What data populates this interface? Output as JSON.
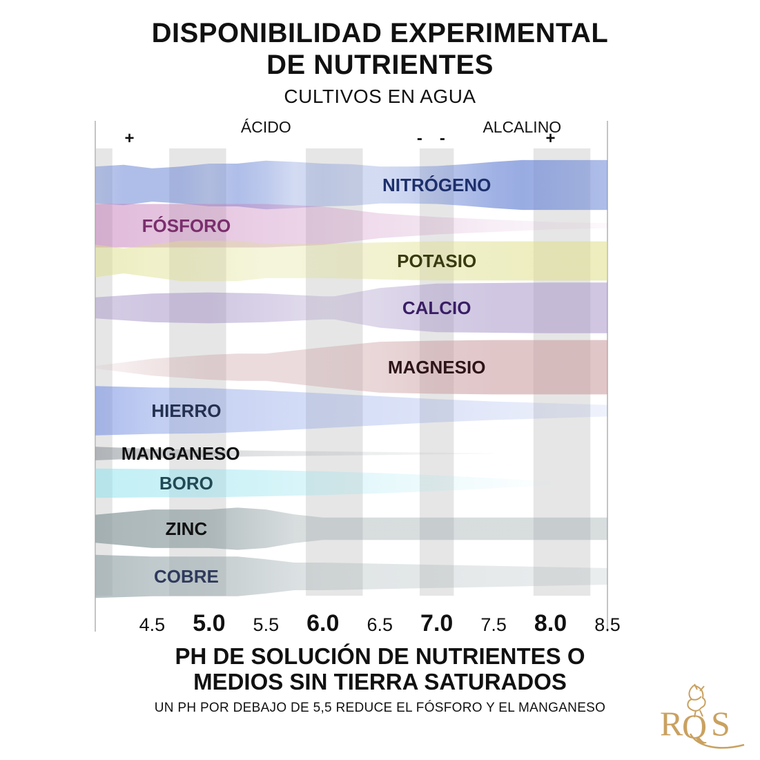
{
  "header": {
    "title_line1": "DISPONIBILIDAD EXPERIMENTAL",
    "title_line2": "DE NUTRIENTES",
    "subtitle": "CULTIVOS EN AGUA"
  },
  "footer": {
    "xlabel_line1": "PH DE SOLUCIÓN DE NUTRIENTES O",
    "xlabel_line2": "MEDIOS SIN TIERRA SATURADOS",
    "note": "UN PH POR DEBAJO DE 5,5 REDUCE EL FÓSFORO Y EL MANGANESO"
  },
  "logo": {
    "text": "RQS",
    "color": "#c9a160"
  },
  "chart_data": {
    "type": "area",
    "title": "DISPONIBILIDAD EXPERIMENTAL DE NUTRIENTES",
    "subtitle": "CULTIVOS EN AGUA",
    "xlabel": "PH DE SOLUCIÓN DE NUTRIENTES O MEDIOS SIN TIERRA SATURADOS",
    "xlim": [
      4.0,
      8.5
    ],
    "x_ticks": [
      {
        "value": 4.5,
        "label": "4.5",
        "bold": false
      },
      {
        "value": 5.0,
        "label": "5.0",
        "bold": true
      },
      {
        "value": 5.5,
        "label": "5.5",
        "bold": false
      },
      {
        "value": 6.0,
        "label": "6.0",
        "bold": true
      },
      {
        "value": 6.5,
        "label": "6.5",
        "bold": false
      },
      {
        "value": 7.0,
        "label": "7.0",
        "bold": true
      },
      {
        "value": 7.5,
        "label": "7.5",
        "bold": false
      },
      {
        "value": 8.0,
        "label": "8.0",
        "bold": true
      },
      {
        "value": 8.5,
        "label": "8.5",
        "bold": false
      }
    ],
    "top_annotations": [
      {
        "text": "ÁCIDO",
        "x": 5.5
      },
      {
        "text": "ALCALINO",
        "x": 7.75
      },
      {
        "text": "+",
        "x": 4.3
      },
      {
        "text": "-",
        "x": 6.85
      },
      {
        "text": "-",
        "x": 7.05
      },
      {
        "text": "+",
        "x": 8.0
      }
    ],
    "shaded_bands": [
      [
        4.0,
        4.15
      ],
      [
        4.65,
        5.15
      ],
      [
        5.85,
        6.35
      ],
      [
        6.85,
        7.15
      ],
      [
        7.85,
        8.35
      ]
    ],
    "y_unit": "relative availability (band thickness, 0-1)",
    "series": [
      {
        "name": "NITRÓGENO",
        "color": "#6d88d6",
        "label_x": 7.0,
        "label_color": "#1d2f6b",
        "x": [
          4.0,
          4.25,
          4.5,
          4.75,
          5.0,
          5.25,
          5.5,
          5.75,
          6.0,
          6.25,
          6.5,
          6.75,
          7.0,
          7.25,
          7.5,
          7.75,
          8.0,
          8.25,
          8.5
        ],
        "values": [
          0.62,
          0.68,
          0.56,
          0.62,
          0.72,
          0.72,
          0.82,
          0.78,
          0.72,
          0.7,
          0.62,
          0.62,
          0.64,
          0.7,
          0.78,
          0.84,
          0.84,
          0.84,
          0.84
        ],
        "opacity": [
          0.45,
          0.55,
          0.55,
          0.55,
          0.45,
          0.55,
          0.45,
          0.3,
          0.35,
          0.3,
          0.3,
          0.35,
          0.45,
          0.55,
          0.65,
          0.7,
          0.65,
          0.6,
          0.55
        ]
      },
      {
        "name": "FÓSFORO",
        "color": "#c276b6",
        "label_x": 4.8,
        "label_color": "#7a2e6c",
        "x": [
          4.0,
          4.5,
          5.0,
          5.5,
          6.0,
          6.5,
          7.0,
          7.5,
          8.0,
          8.5
        ],
        "values": [
          0.7,
          0.7,
          0.7,
          0.7,
          0.62,
          0.4,
          0.28,
          0.2,
          0.12,
          0.08
        ],
        "opacity": [
          0.5,
          0.45,
          0.4,
          0.35,
          0.3,
          0.25,
          0.2,
          0.12,
          0.08,
          0.05
        ]
      },
      {
        "name": "POTASIO",
        "color": "#dede8a",
        "label_x": 7.0,
        "label_color": "#3a3a10",
        "x": [
          4.0,
          4.25,
          4.5,
          4.75,
          5.0,
          5.25,
          5.5,
          5.75,
          6.0,
          6.5,
          7.0,
          7.5,
          8.0,
          8.5
        ],
        "values": [
          0.55,
          0.42,
          0.55,
          0.68,
          0.68,
          0.68,
          0.58,
          0.58,
          0.58,
          0.62,
          0.66,
          0.66,
          0.66,
          0.66
        ],
        "opacity": [
          0.5,
          0.5,
          0.45,
          0.45,
          0.4,
          0.35,
          0.3,
          0.3,
          0.35,
          0.4,
          0.45,
          0.5,
          0.55,
          0.55
        ]
      },
      {
        "name": "CALCIO",
        "color": "#a18ec5",
        "label_x": 7.0,
        "label_color": "#3a1e66",
        "x": [
          4.0,
          4.5,
          5.0,
          5.5,
          6.0,
          6.1,
          6.5,
          7.0,
          7.5,
          8.0,
          8.5
        ],
        "values": [
          0.38,
          0.52,
          0.56,
          0.52,
          0.42,
          0.42,
          0.72,
          0.88,
          0.9,
          0.92,
          0.92
        ],
        "opacity": [
          0.45,
          0.5,
          0.5,
          0.4,
          0.3,
          0.3,
          0.35,
          0.45,
          0.5,
          0.5,
          0.5
        ]
      },
      {
        "name": "MAGNESIO",
        "color": "#c8989c",
        "label_x": 7.0,
        "label_color": "#2d1418",
        "x": [
          4.0,
          4.5,
          5.0,
          5.25,
          5.5,
          6.0,
          6.5,
          7.0,
          7.5,
          8.0,
          8.5
        ],
        "values": [
          0.05,
          0.3,
          0.44,
          0.48,
          0.48,
          0.7,
          0.9,
          0.94,
          0.96,
          0.96,
          0.96
        ],
        "opacity": [
          0.1,
          0.25,
          0.35,
          0.35,
          0.35,
          0.35,
          0.4,
          0.5,
          0.55,
          0.55,
          0.55
        ]
      },
      {
        "name": "HIERRO",
        "color": "#7590e2",
        "label_x": 4.8,
        "label_color": "#24304e",
        "x": [
          4.0,
          4.5,
          5.0,
          5.5,
          6.0,
          6.5,
          7.0,
          7.5,
          8.0,
          8.5
        ],
        "values": [
          0.85,
          0.8,
          0.78,
          0.7,
          0.6,
          0.5,
          0.4,
          0.32,
          0.26,
          0.2
        ],
        "opacity": [
          0.6,
          0.45,
          0.4,
          0.35,
          0.3,
          0.28,
          0.24,
          0.2,
          0.15,
          0.12
        ]
      },
      {
        "name": "MANGANESO",
        "color": "#8c9298",
        "label_x": 4.75,
        "label_color": "#111111",
        "x": [
          4.0,
          4.5,
          5.0,
          5.5,
          6.0,
          6.5,
          7.0,
          7.5
        ],
        "values": [
          0.45,
          0.3,
          0.24,
          0.18,
          0.14,
          0.1,
          0.06,
          0.02
        ],
        "opacity": [
          0.6,
          0.45,
          0.35,
          0.25,
          0.2,
          0.15,
          0.1,
          0.05
        ]
      },
      {
        "name": "BORO",
        "color": "#8fe2ee",
        "label_x": 4.8,
        "label_color": "#1f4a55",
        "x": [
          4.0,
          4.5,
          5.0,
          5.5,
          6.0,
          6.5,
          7.0,
          7.5,
          8.0
        ],
        "values": [
          0.52,
          0.5,
          0.5,
          0.46,
          0.42,
          0.36,
          0.28,
          0.18,
          0.06
        ],
        "opacity": [
          0.55,
          0.5,
          0.45,
          0.4,
          0.3,
          0.22,
          0.15,
          0.08,
          0.03
        ]
      },
      {
        "name": "ZINC",
        "color": "#8e9ea1",
        "label_x": 4.8,
        "label_color": "#111111",
        "x": [
          4.0,
          4.5,
          5.0,
          5.25,
          5.5,
          5.75,
          6.0,
          6.5,
          7.0,
          7.5,
          8.0,
          8.5
        ],
        "values": [
          0.45,
          0.62,
          0.62,
          0.68,
          0.62,
          0.46,
          0.36,
          0.36,
          0.36,
          0.36,
          0.36,
          0.36
        ],
        "opacity": [
          0.75,
          0.7,
          0.65,
          0.55,
          0.45,
          0.35,
          0.35,
          0.35,
          0.35,
          0.35,
          0.35,
          0.35
        ]
      },
      {
        "name": "COBRE",
        "color": "#96a6aa",
        "label_x": 4.8,
        "label_color": "#2e3a5c",
        "x": [
          4.0,
          4.5,
          5.0,
          5.25,
          5.5,
          5.75,
          6.0,
          6.5,
          7.0,
          7.5,
          8.0,
          8.5
        ],
        "values": [
          0.78,
          0.72,
          0.72,
          0.72,
          0.62,
          0.5,
          0.5,
          0.46,
          0.42,
          0.38,
          0.34,
          0.3
        ],
        "opacity": [
          0.7,
          0.6,
          0.55,
          0.5,
          0.42,
          0.35,
          0.3,
          0.28,
          0.26,
          0.24,
          0.22,
          0.2
        ]
      }
    ]
  }
}
